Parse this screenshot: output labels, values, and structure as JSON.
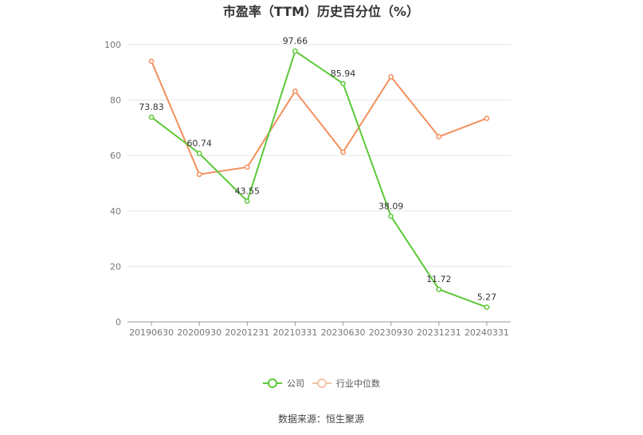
{
  "chart_data": {
    "type": "line",
    "title": "市盈率（TTM）历史百分位（%）",
    "categories": [
      "20190630",
      "20200930",
      "20201231",
      "20210331",
      "20230630",
      "20230930",
      "20231231",
      "20240331"
    ],
    "ylim": [
      0,
      100
    ],
    "yticks": [
      0,
      20,
      40,
      60,
      80,
      100
    ],
    "grid": true,
    "legend_position": "bottom-center",
    "series": [
      {
        "name": "公司",
        "color": "#5cc838",
        "values": [
          73.83,
          60.74,
          43.55,
          97.66,
          85.94,
          38.09,
          11.72,
          5.27
        ],
        "labels": [
          "73.83",
          "60.74",
          "43.55",
          "97.66",
          "85.94",
          "38.09",
          "11.72",
          "5.27"
        ]
      },
      {
        "name": "行业中位数",
        "color": "#f28f5c",
        "values": [
          94.0,
          53.2,
          55.8,
          83.2,
          61.2,
          88.4,
          66.8,
          73.4
        ]
      }
    ],
    "source": "数据来源：恒生聚源"
  }
}
